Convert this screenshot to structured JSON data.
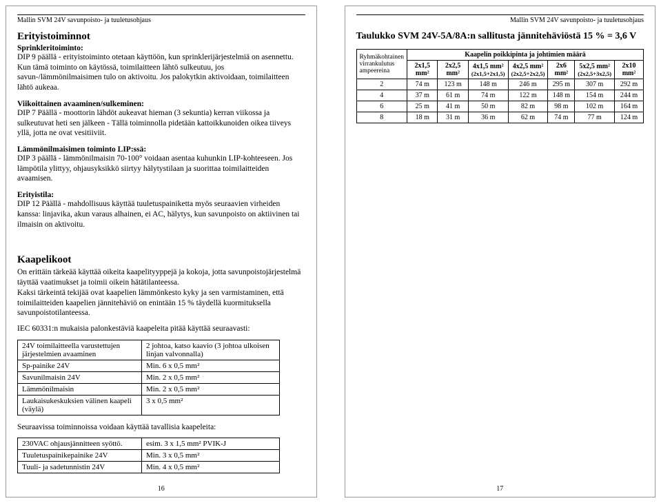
{
  "header": {
    "left": "Mallin SVM 24V savunpoisto- ja tuuletusohjaus",
    "right": "Mallin SVM 24V savunpoisto- ja tuuletusohjaus"
  },
  "left_page": {
    "title1": "Erityistoiminnot",
    "sub1": "Sprinkleritoiminto:",
    "p1": "DIP 9 päällä - erityistoiminto otetaan käyttöön, kun sprinklerijärjestelmiä on asennettu. Kun tämä toiminto on käytössä, toimilaitteen lähtö sulkeutuu, jos savun-/lämmönilmaisimen tulo on aktivoitu. Jos palokytkin aktivoidaan, toimilaitteen lähtö aukeaa.",
    "sub2": "Viikoittainen avaaminen/sulkeminen:",
    "p2": "DIP 7 Päällä - moottorin lähdöt aukeavat hieman (3 sekuntia) kerran viikossa ja sulkeutuvat heti sen jälkeen - Tällä toiminnolla pidetään kattoikkunoiden oikea tiiveys yllä, jotta ne ovat vesitiiviit.",
    "sub3": "Lämmönilmaisimen toiminto LIP:ssä:",
    "p3": "DIP 3 päällä - lämmönilmaisin 70-100° voidaan asentaa kuhunkin LIP-kohteeseen. Jos lämpötila ylittyy, ohjausyksikkö siirtyy hälytystilaan ja suorittaa toimilaitteiden avaamisen.",
    "sub4": "Erityistila:",
    "p4": "DIP 12 Päällä - mahdollisuus käyttää tuuletuspainiketta myös seuraavien virheiden kanssa: linjavika, akun varaus alhainen, ei AC, hälytys, kun savunpoisto on aktiivinen tai ilmaisin on aktivoitu.",
    "title2": "Kaapelikoot",
    "p5": "On erittäin tärkeää käyttää oikeita kaapelityyppejä ja kokoja, jotta savunpoistojärjestelmä täyttää vaatimukset ja toimii oikein hätätilanteessa.",
    "p5b": "Kaksi tärkeintä tekijää ovat kaapelien lämmönkesto kyky ja sen varmistaminen, että toimilaitteiden kaapelien jännitehäviö on enintään 15 % täydellä kuormituksella savunpoistotilanteessa.",
    "p6": "IEC 60331:n mukaisia palonkestäviä kaapeleita pitää käyttää seuraavasti:",
    "table1": {
      "rows": [
        [
          "24V toimilaitteella varustettujen järjestelmien avaaminen",
          "2 johtoa, katso kaavio (3 johtoa ulkoisen linjan valvonnalla)"
        ],
        [
          "Sp-painike 24V",
          "Min. 6 x 0,5 mm²"
        ],
        [
          "Savunilmaisin 24V",
          "Min. 2 x 0,5 mm²"
        ],
        [
          "Lämmönilmaisin",
          "Min. 2 x 0,5 mm²"
        ],
        [
          "Laukaisukeskuksien välinen kaapeli (väylä)",
          "3 x 0,5 mm²"
        ]
      ]
    },
    "p7": "Seuraavissa toiminnoissa voidaan käyttää tavallisia kaapeleita:",
    "table2": {
      "rows": [
        [
          "230VAC ohjausjännitteen syöttö.",
          "esim. 3 x 1,5 mm² PVIK-J"
        ],
        [
          "Tuuletuspainikepainike 24V",
          "Min. 3 x 0,5 mm²"
        ],
        [
          "Tuuli- ja sadetunnistin 24V",
          "Min. 4 x 0,5 mm²"
        ]
      ]
    },
    "page_num": "16"
  },
  "right_page": {
    "title": "Taulukko SVM 24V-5A/8A:n sallitusta jännitehäviöstä 15 % = 3,6 V",
    "row_header": "Ryhmäkohtainen virrankulutus ampeereina",
    "group_header": "Kaapelin poikkipinta ja johtimien määrä",
    "columns": [
      {
        "main": "2x1,5 mm²",
        "sub": ""
      },
      {
        "main": "2x2,5 mm²",
        "sub": ""
      },
      {
        "main": "4x1,5 mm²",
        "sub": "(2x1,5+2x1,5)"
      },
      {
        "main": "4x2,5 mm²",
        "sub": "(2x2,5+2x2,5)"
      },
      {
        "main": "2x6 mm²",
        "sub": ""
      },
      {
        "main": "5x2,5 mm²",
        "sub": "(2x2,5+3x2,5)"
      },
      {
        "main": "2x10 mm²",
        "sub": ""
      }
    ],
    "rows": [
      {
        "amp": "2",
        "vals": [
          "74 m",
          "123 m",
          "148 m",
          "246 m",
          "295 m",
          "307 m",
          "292 m"
        ]
      },
      {
        "amp": "4",
        "vals": [
          "37 m",
          "61 m",
          "74 m",
          "122 m",
          "148 m",
          "154 m",
          "244 m"
        ]
      },
      {
        "amp": "6",
        "vals": [
          "25 m",
          "41 m",
          "50 m",
          "82 m",
          "98 m",
          "102 m",
          "164 m"
        ]
      },
      {
        "amp": "8",
        "vals": [
          "18 m",
          "31 m",
          "36 m",
          "62 m",
          "74 m",
          "77 m",
          "124 m"
        ]
      }
    ],
    "page_num": "17"
  }
}
